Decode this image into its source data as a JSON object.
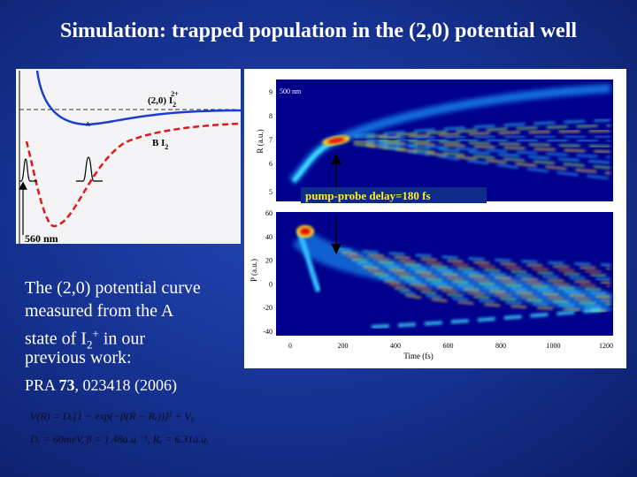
{
  "title": "Simulation: trapped population in the (2,0) potential well",
  "left_figure": {
    "state_label": {
      "main": "(2,0) I",
      "sub": "2",
      "sup": "2+"
    },
    "marker_a": "A",
    "b_state_label": {
      "main": "B I",
      "sub": "2"
    },
    "pump_wavelength": "560 nm"
  },
  "right_figure": {
    "probe_wavelength": "500 nm",
    "delay_label": "pump-probe delay=180 fs",
    "upper_y_label": "R (a.u.)",
    "upper_y_ticks": [
      "9",
      "8",
      "7",
      "6",
      "5"
    ],
    "lower_y_label": "P (a.u.)",
    "lower_y_ticks": [
      "60",
      "40",
      "20",
      "0",
      "-20",
      "-40"
    ],
    "x_label": "Time (fs)",
    "x_ticks": [
      "0",
      "200",
      "400",
      "600",
      "800",
      "1000",
      "1200"
    ]
  },
  "caption": {
    "lines": [
      "The (2,0) potential curve",
      "measured from the A"
    ],
    "line3": {
      "before": "state of I",
      "sub": "2",
      "sup": "+",
      "after": " in our"
    },
    "line4": "previous work:"
  },
  "citation": {
    "journal": "PRA ",
    "volume": "73",
    "rest": ", 023418 (2006)"
  },
  "formula": {
    "line1": "V(R) = Dₑ[1 − exp(−β(R − Rₑ))]² + V₀",
    "line2": "Dₑ = 60meV, β = 1.48a.u.⁻¹, Rₑ = 6.31a.u."
  }
}
